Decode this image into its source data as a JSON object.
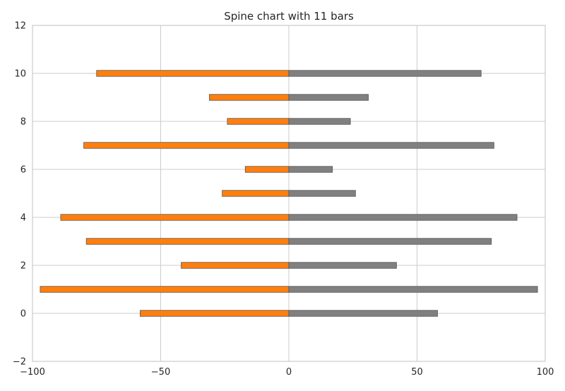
{
  "chart_data": {
    "type": "bar",
    "orientation": "horizontal",
    "title": "Spine chart with 11 bars",
    "xlabel": "",
    "ylabel": "",
    "xlim": [
      -100,
      100
    ],
    "ylim": [
      -2,
      12
    ],
    "xticks": [
      -100,
      -50,
      0,
      50,
      100
    ],
    "yticks": [
      -2,
      0,
      2,
      4,
      6,
      8,
      10,
      12
    ],
    "xtick_labels": [
      "−100",
      "−50",
      "0",
      "50",
      "100"
    ],
    "ytick_labels": [
      "−2",
      "0",
      "2",
      "4",
      "6",
      "8",
      "10",
      "12"
    ],
    "grid": true,
    "categories": [
      0,
      1,
      2,
      3,
      4,
      5,
      6,
      7,
      8,
      9,
      10
    ],
    "series": [
      {
        "color": "#ff7f0e",
        "values": [
          -58,
          -97,
          -42,
          -79,
          -89,
          -26,
          -17,
          -80,
          -24,
          -31,
          -75
        ]
      },
      {
        "color": "#808080",
        "values": [
          58,
          97,
          42,
          79,
          89,
          26,
          17,
          80,
          24,
          31,
          75
        ]
      }
    ],
    "colors": {
      "grid": "#cbcbcb",
      "axes_edge": "#cbcbcb",
      "bar_edge": "#555555",
      "text": "#262626"
    }
  }
}
